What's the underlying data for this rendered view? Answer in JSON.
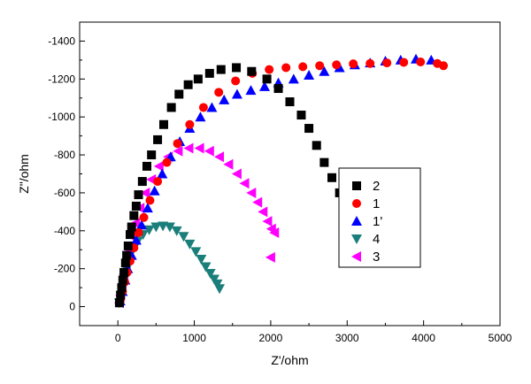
{
  "chart_data": {
    "type": "scatter",
    "title": "",
    "xlabel": "Z'/ohm",
    "ylabel": "Z\"/ohm",
    "xlim": [
      -500,
      5000
    ],
    "ylim": [
      100,
      -1500
    ],
    "x_ticks": [
      0,
      1000,
      2000,
      3000,
      4000,
      5000
    ],
    "y_ticks": [
      0,
      -200,
      -400,
      -600,
      -800,
      -1000,
      -1200,
      -1400
    ],
    "legend_position": "right-center",
    "grid": false,
    "series": [
      {
        "name": "2",
        "color": "#000000",
        "marker": "square",
        "points": [
          [
            20,
            -20
          ],
          [
            35,
            -60
          ],
          [
            50,
            -100
          ],
          [
            65,
            -140
          ],
          [
            80,
            -180
          ],
          [
            100,
            -230
          ],
          [
            115,
            -270
          ],
          [
            135,
            -320
          ],
          [
            160,
            -380
          ],
          [
            180,
            -420
          ],
          [
            210,
            -480
          ],
          [
            240,
            -530
          ],
          [
            270,
            -590
          ],
          [
            320,
            -660
          ],
          [
            380,
            -740
          ],
          [
            440,
            -800
          ],
          [
            520,
            -880
          ],
          [
            600,
            -960
          ],
          [
            700,
            -1050
          ],
          [
            800,
            -1120
          ],
          [
            920,
            -1170
          ],
          [
            1050,
            -1200
          ],
          [
            1200,
            -1230
          ],
          [
            1350,
            -1250
          ],
          [
            1550,
            -1260
          ],
          [
            1750,
            -1240
          ],
          [
            1950,
            -1200
          ],
          [
            2100,
            -1150
          ],
          [
            2250,
            -1080
          ],
          [
            2400,
            -1010
          ],
          [
            2500,
            -940
          ],
          [
            2600,
            -850
          ],
          [
            2700,
            -760
          ],
          [
            2800,
            -680
          ],
          [
            2900,
            -600
          ],
          [
            2980,
            -540
          ],
          [
            3060,
            -470
          ]
        ]
      },
      {
        "name": "1",
        "color": "#ff0000",
        "marker": "circle",
        "points": [
          [
            30,
            -30
          ],
          [
            60,
            -80
          ],
          [
            90,
            -130
          ],
          [
            120,
            -180
          ],
          [
            160,
            -240
          ],
          [
            210,
            -310
          ],
          [
            270,
            -390
          ],
          [
            340,
            -470
          ],
          [
            420,
            -560
          ],
          [
            520,
            -660
          ],
          [
            640,
            -760
          ],
          [
            780,
            -860
          ],
          [
            940,
            -960
          ],
          [
            1120,
            -1050
          ],
          [
            1320,
            -1130
          ],
          [
            1540,
            -1190
          ],
          [
            1760,
            -1230
          ],
          [
            1980,
            -1250
          ],
          [
            2200,
            -1260
          ],
          [
            2420,
            -1265
          ],
          [
            2640,
            -1270
          ],
          [
            2860,
            -1275
          ],
          [
            3080,
            -1280
          ],
          [
            3300,
            -1282
          ],
          [
            3520,
            -1285
          ],
          [
            3740,
            -1288
          ],
          [
            3960,
            -1290
          ],
          [
            4180,
            -1282
          ],
          [
            4260,
            -1270
          ]
        ]
      },
      {
        "name": "1'",
        "color": "#0000ff",
        "marker": "triangle-up",
        "points": [
          [
            30,
            -30
          ],
          [
            60,
            -80
          ],
          [
            95,
            -140
          ],
          [
            130,
            -200
          ],
          [
            180,
            -270
          ],
          [
            240,
            -350
          ],
          [
            310,
            -430
          ],
          [
            390,
            -520
          ],
          [
            480,
            -610
          ],
          [
            580,
            -700
          ],
          [
            690,
            -790
          ],
          [
            810,
            -870
          ],
          [
            940,
            -940
          ],
          [
            1080,
            -1000
          ],
          [
            1230,
            -1050
          ],
          [
            1390,
            -1090
          ],
          [
            1560,
            -1120
          ],
          [
            1740,
            -1140
          ],
          [
            1920,
            -1160
          ],
          [
            2100,
            -1180
          ],
          [
            2300,
            -1200
          ],
          [
            2500,
            -1220
          ],
          [
            2700,
            -1240
          ],
          [
            2900,
            -1260
          ],
          [
            3100,
            -1275
          ],
          [
            3300,
            -1285
          ],
          [
            3500,
            -1295
          ],
          [
            3700,
            -1300
          ],
          [
            3900,
            -1305
          ],
          [
            4100,
            -1300
          ]
        ]
      },
      {
        "name": "4",
        "color": "#1a7f7a",
        "marker": "triangle-down",
        "points": [
          [
            20,
            -20
          ],
          [
            40,
            -60
          ],
          [
            60,
            -100
          ],
          [
            85,
            -150
          ],
          [
            115,
            -200
          ],
          [
            150,
            -250
          ],
          [
            200,
            -300
          ],
          [
            260,
            -345
          ],
          [
            330,
            -380
          ],
          [
            410,
            -405
          ],
          [
            500,
            -420
          ],
          [
            590,
            -425
          ],
          [
            680,
            -420
          ],
          [
            770,
            -400
          ],
          [
            860,
            -370
          ],
          [
            940,
            -330
          ],
          [
            1020,
            -290
          ],
          [
            1090,
            -250
          ],
          [
            1150,
            -210
          ],
          [
            1210,
            -175
          ],
          [
            1260,
            -145
          ],
          [
            1300,
            -120
          ],
          [
            1330,
            -95
          ]
        ]
      },
      {
        "name": "3",
        "color": "#ff00ff",
        "marker": "triangle-left",
        "points": [
          [
            20,
            -20
          ],
          [
            35,
            -60
          ],
          [
            55,
            -110
          ],
          [
            80,
            -170
          ],
          [
            110,
            -230
          ],
          [
            145,
            -300
          ],
          [
            185,
            -370
          ],
          [
            230,
            -440
          ],
          [
            290,
            -520
          ],
          [
            360,
            -600
          ],
          [
            440,
            -670
          ],
          [
            540,
            -740
          ],
          [
            660,
            -790
          ],
          [
            790,
            -820
          ],
          [
            930,
            -835
          ],
          [
            1070,
            -835
          ],
          [
            1200,
            -820
          ],
          [
            1330,
            -790
          ],
          [
            1450,
            -750
          ],
          [
            1560,
            -700
          ],
          [
            1660,
            -650
          ],
          [
            1750,
            -600
          ],
          [
            1830,
            -550
          ],
          [
            1900,
            -500
          ],
          [
            1960,
            -450
          ],
          [
            2010,
            -410
          ],
          [
            2050,
            -390
          ],
          [
            2000,
            -260
          ]
        ]
      }
    ]
  }
}
